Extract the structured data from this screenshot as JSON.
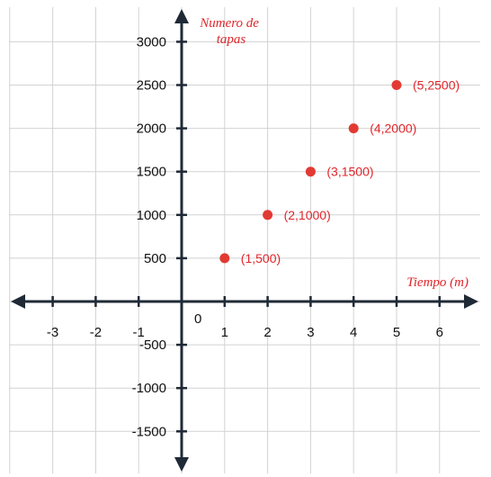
{
  "chart_data": {
    "type": "scatter",
    "ylabel_lines": [
      "Numero de",
      "tapas"
    ],
    "xlabel": "Tiempo (m)",
    "xlim": [
      -4,
      7
    ],
    "ylim": [
      -2000,
      3000
    ],
    "origin_label": "0",
    "x_ticks": [
      {
        "value": -3,
        "label": "-3"
      },
      {
        "value": -2,
        "label": "-2"
      },
      {
        "value": -1,
        "label": "-1"
      },
      {
        "value": 1,
        "label": "1"
      },
      {
        "value": 2,
        "label": "2"
      },
      {
        "value": 3,
        "label": "3"
      },
      {
        "value": 4,
        "label": "4"
      },
      {
        "value": 5,
        "label": "5"
      },
      {
        "value": 6,
        "label": "6"
      }
    ],
    "y_ticks": [
      {
        "value": 3000,
        "label": "3000"
      },
      {
        "value": 2500,
        "label": "2500"
      },
      {
        "value": 2000,
        "label": "2000"
      },
      {
        "value": 1500,
        "label": "1500"
      },
      {
        "value": 1000,
        "label": "1000"
      },
      {
        "value": 500,
        "label": "500"
      },
      {
        "value": -500,
        "label": "-500"
      },
      {
        "value": -1000,
        "label": "-1000"
      },
      {
        "value": -1500,
        "label": "-1500"
      }
    ],
    "points": [
      {
        "x": 1,
        "y": 500,
        "label": "(1,500)"
      },
      {
        "x": 2,
        "y": 1000,
        "label": "(2,1000)"
      },
      {
        "x": 3,
        "y": 1500,
        "label": "(3,1500)"
      },
      {
        "x": 4,
        "y": 2000,
        "label": "(4,2000)"
      },
      {
        "x": 5,
        "y": 2500,
        "label": "(5,2500)"
      }
    ],
    "grid": true,
    "colors": {
      "point": "#e23a33",
      "annotation": "#e0262b",
      "axis": "#1f2a36",
      "grid": "#d2d2d2"
    }
  }
}
